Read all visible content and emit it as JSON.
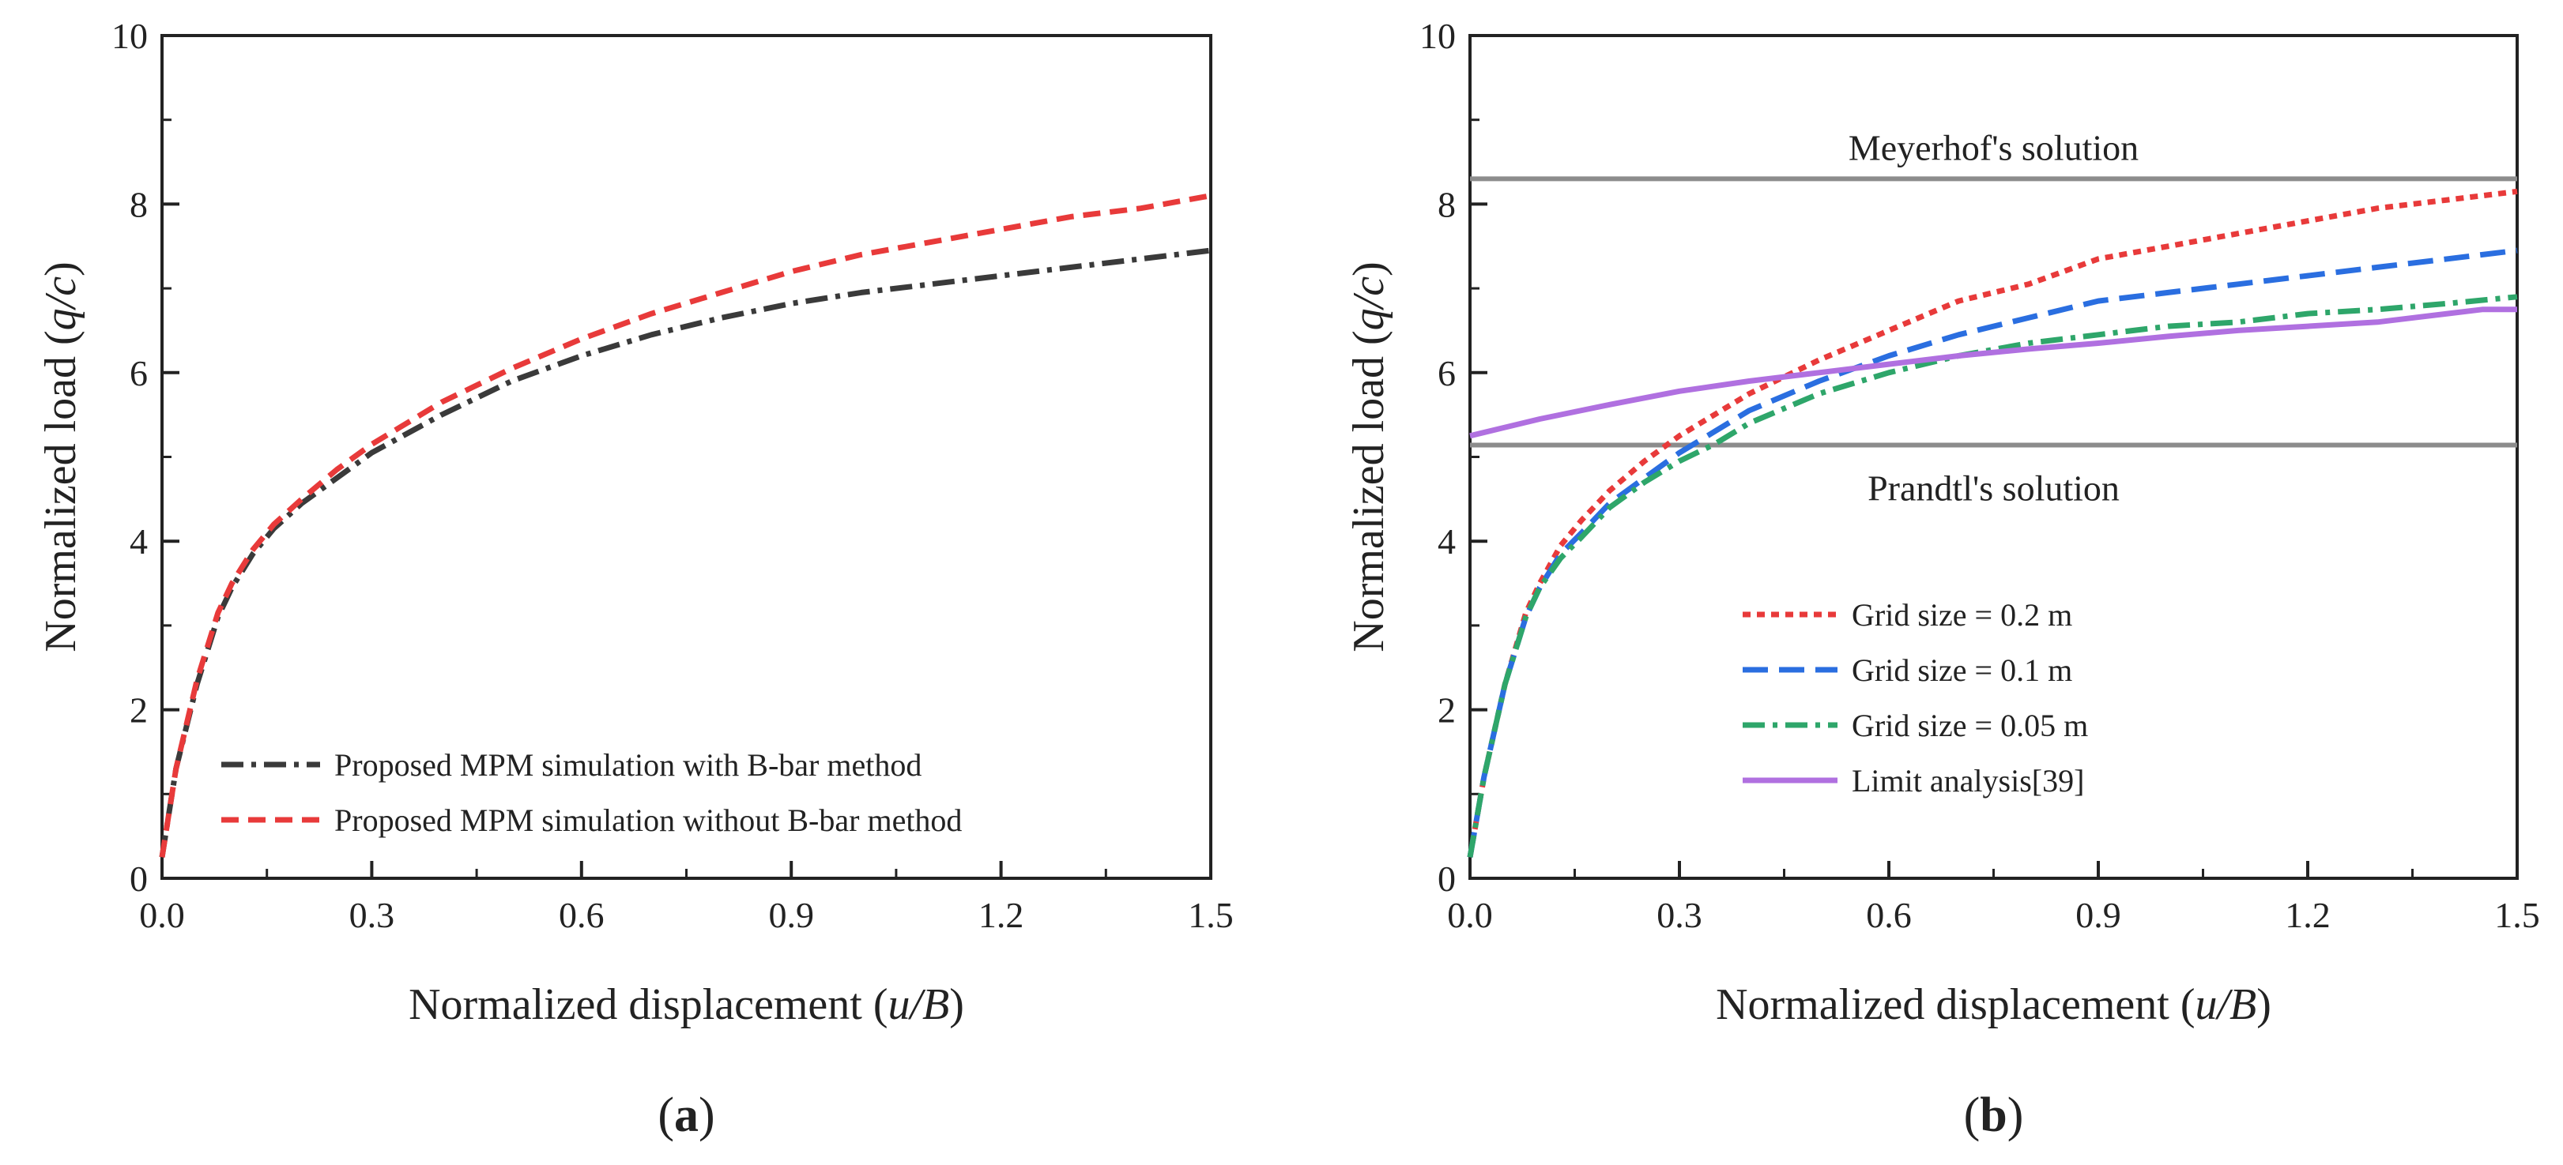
{
  "chart_data": [
    {
      "type": "line",
      "panel_label": "a",
      "xlabel_prefix": "Normalized displacement (",
      "xlabel_var": "u/B",
      "xlabel_suffix": ")",
      "ylabel_prefix": "Normalized load (",
      "ylabel_var": "q/c",
      "ylabel_suffix": ")",
      "xlim": [
        0,
        1.5
      ],
      "ylim": [
        0,
        10
      ],
      "xticks": [
        0.0,
        0.3,
        0.6,
        0.9,
        1.2,
        1.5
      ],
      "xtick_labels": [
        "0.0",
        "0.3",
        "0.6",
        "0.9",
        "1.2",
        "1.5"
      ],
      "yticks": [
        0,
        2,
        4,
        6,
        8,
        10
      ],
      "ytick_labels": [
        "0",
        "2",
        "4",
        "6",
        "8",
        "10"
      ],
      "legend_position": "bottom-right",
      "series": [
        {
          "name": "Proposed MPM simulation with B-bar method",
          "color": "#3a3a3a",
          "dash": "dashdot",
          "x": [
            0.0,
            0.02,
            0.05,
            0.08,
            0.1,
            0.13,
            0.16,
            0.2,
            0.25,
            0.3,
            0.4,
            0.5,
            0.6,
            0.7,
            0.8,
            0.9,
            1.0,
            1.1,
            1.2,
            1.3,
            1.4,
            1.5
          ],
          "y": [
            0.25,
            1.3,
            2.3,
            3.1,
            3.45,
            3.85,
            4.15,
            4.45,
            4.75,
            5.05,
            5.5,
            5.9,
            6.2,
            6.45,
            6.65,
            6.82,
            6.95,
            7.05,
            7.15,
            7.25,
            7.35,
            7.45
          ]
        },
        {
          "name": "Proposed MPM simulation without B-bar method",
          "color": "#e83a3a",
          "dash": "dashed",
          "x": [
            0.0,
            0.02,
            0.05,
            0.08,
            0.1,
            0.13,
            0.16,
            0.2,
            0.25,
            0.3,
            0.4,
            0.5,
            0.6,
            0.7,
            0.8,
            0.9,
            1.0,
            1.1,
            1.2,
            1.3,
            1.4,
            1.5
          ],
          "y": [
            0.25,
            1.3,
            2.35,
            3.15,
            3.5,
            3.9,
            4.2,
            4.5,
            4.85,
            5.15,
            5.65,
            6.05,
            6.4,
            6.7,
            6.95,
            7.2,
            7.4,
            7.55,
            7.7,
            7.85,
            7.95,
            8.1
          ]
        }
      ]
    },
    {
      "type": "line",
      "panel_label": "b",
      "xlabel_prefix": "Normalized displacement (",
      "xlabel_var": "u/B",
      "xlabel_suffix": ")",
      "ylabel_prefix": "Normalized load (",
      "ylabel_var": "q/c",
      "ylabel_suffix": ")",
      "xlim": [
        0,
        1.5
      ],
      "ylim": [
        0,
        10
      ],
      "xticks": [
        0.0,
        0.3,
        0.6,
        0.9,
        1.2,
        1.5
      ],
      "xtick_labels": [
        "0.0",
        "0.3",
        "0.6",
        "0.9",
        "1.2",
        "1.5"
      ],
      "yticks": [
        0,
        2,
        4,
        6,
        8,
        10
      ],
      "ytick_labels": [
        "0",
        "2",
        "4",
        "6",
        "8",
        "10"
      ],
      "legend_position": "bottom-center",
      "reference_lines": [
        {
          "label": "Meyerhof's solution",
          "y": 8.3,
          "color": "#8c8c8c",
          "label_position": "above"
        },
        {
          "label": "Prandtl's solution",
          "y": 5.14,
          "color": "#8c8c8c",
          "label_position": "below"
        }
      ],
      "series": [
        {
          "name": "Grid size = 0.2 m",
          "color": "#e83a3a",
          "dash": "dotted",
          "x": [
            0.0,
            0.02,
            0.05,
            0.08,
            0.1,
            0.13,
            0.16,
            0.2,
            0.25,
            0.3,
            0.35,
            0.4,
            0.5,
            0.6,
            0.7,
            0.8,
            0.9,
            1.0,
            1.1,
            1.2,
            1.3,
            1.4,
            1.5
          ],
          "y": [
            0.25,
            1.2,
            2.3,
            3.15,
            3.5,
            3.95,
            4.25,
            4.6,
            4.95,
            5.25,
            5.5,
            5.75,
            6.15,
            6.5,
            6.85,
            7.05,
            7.35,
            7.5,
            7.65,
            7.8,
            7.95,
            8.05,
            8.15
          ]
        },
        {
          "name": "Grid size = 0.1 m",
          "color": "#2a6ee0",
          "dash": "longdash",
          "x": [
            0.0,
            0.02,
            0.05,
            0.08,
            0.1,
            0.13,
            0.16,
            0.2,
            0.25,
            0.3,
            0.35,
            0.4,
            0.5,
            0.6,
            0.7,
            0.8,
            0.9,
            1.0,
            1.1,
            1.2,
            1.3,
            1.4,
            1.5
          ],
          "y": [
            0.25,
            1.2,
            2.3,
            3.1,
            3.45,
            3.85,
            4.1,
            4.45,
            4.75,
            5.05,
            5.3,
            5.55,
            5.9,
            6.2,
            6.45,
            6.65,
            6.85,
            6.95,
            7.05,
            7.15,
            7.25,
            7.35,
            7.45
          ]
        },
        {
          "name": "Grid size = 0.05 m",
          "color": "#2ea66a",
          "dash": "dashdot",
          "x": [
            0.0,
            0.02,
            0.05,
            0.08,
            0.1,
            0.13,
            0.16,
            0.2,
            0.25,
            0.3,
            0.35,
            0.4,
            0.5,
            0.6,
            0.7,
            0.8,
            0.9,
            1.0,
            1.1,
            1.2,
            1.3,
            1.4,
            1.5
          ],
          "y": [
            0.25,
            1.2,
            2.3,
            3.1,
            3.45,
            3.8,
            4.05,
            4.4,
            4.7,
            4.95,
            5.15,
            5.4,
            5.75,
            6.0,
            6.2,
            6.35,
            6.45,
            6.55,
            6.6,
            6.7,
            6.75,
            6.82,
            6.9
          ]
        },
        {
          "name": "Limit analysis[39]",
          "color": "#b070e0",
          "dash": "solid",
          "x": [
            0.0,
            0.1,
            0.2,
            0.3,
            0.4,
            0.5,
            0.6,
            0.7,
            0.8,
            0.9,
            1.0,
            1.1,
            1.2,
            1.3,
            1.4,
            1.45,
            1.5
          ],
          "y": [
            5.25,
            5.45,
            5.62,
            5.78,
            5.9,
            6.0,
            6.1,
            6.2,
            6.28,
            6.35,
            6.43,
            6.5,
            6.55,
            6.6,
            6.7,
            6.75,
            6.75
          ]
        }
      ]
    }
  ]
}
